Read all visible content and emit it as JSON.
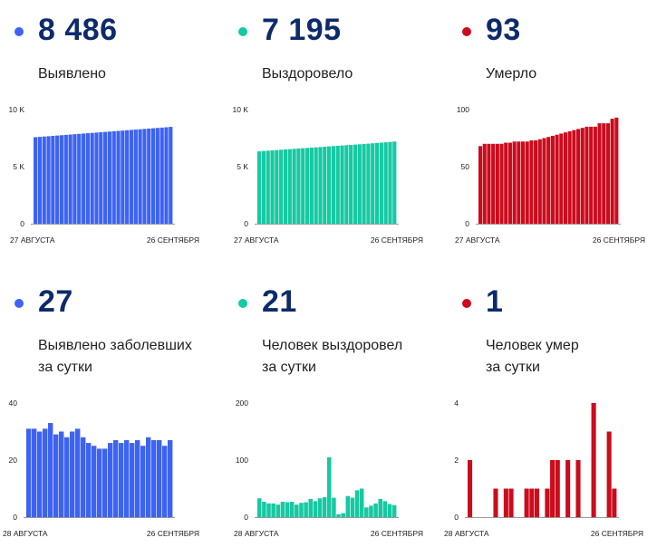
{
  "colors": {
    "blue": "#3d63f2",
    "teal": "#16c9a2",
    "red": "#cc0b1c",
    "navy": "#0d2b6b"
  },
  "panels": [
    {
      "value": "8 486",
      "label": [
        "Выявлено"
      ],
      "color": "#3d63f2"
    },
    {
      "value": "7 195",
      "label": [
        "Выздоровело"
      ],
      "color": "#16c9a2"
    },
    {
      "value": "93",
      "label": [
        "Умерло"
      ],
      "color": "#cc0b1c"
    },
    {
      "value": "27",
      "label": [
        "Выявлено заболевших",
        "за сутки"
      ],
      "color": "#3d63f2"
    },
    {
      "value": "21",
      "label": [
        "Человек выздоровел",
        "за сутки"
      ],
      "color": "#16c9a2"
    },
    {
      "value": "1",
      "label": [
        "Человек умер",
        "за сутки"
      ],
      "color": "#cc0b1c"
    }
  ],
  "chart_data": [
    {
      "type": "bar",
      "color": "#3d63f2",
      "ylim": [
        0,
        10000
      ],
      "yticks": [
        {
          "v": 0,
          "t": "0"
        },
        {
          "v": 5000,
          "t": "5 K"
        },
        {
          "v": 10000,
          "t": "10 K"
        }
      ],
      "xlabels": [
        "27 АВГУСТА",
        "26 СЕНТЯБРЯ"
      ],
      "values": [
        7582,
        7610,
        7639,
        7668,
        7697,
        7726,
        7755,
        7784,
        7813,
        7842,
        7871,
        7900,
        7929,
        7958,
        7987,
        8016,
        8045,
        8074,
        8103,
        8132,
        8161,
        8190,
        8219,
        8248,
        8277,
        8306,
        8335,
        8364,
        8393,
        8422,
        8451,
        8486
      ]
    },
    {
      "type": "bar",
      "color": "#16c9a2",
      "ylim": [
        0,
        10000
      ],
      "yticks": [
        {
          "v": 0,
          "t": "0"
        },
        {
          "v": 5000,
          "t": "5 K"
        },
        {
          "v": 10000,
          "t": "10 K"
        }
      ],
      "xlabels": [
        "27 АВГУСТА",
        "26 СЕНТЯБРЯ"
      ],
      "values": [
        6340,
        6375,
        6400,
        6425,
        6450,
        6480,
        6510,
        6535,
        6560,
        6590,
        6615,
        6640,
        6665,
        6690,
        6720,
        6745,
        6775,
        6800,
        6830,
        6855,
        6880,
        6905,
        6935,
        6960,
        6990,
        7015,
        7045,
        7075,
        7105,
        7135,
        7165,
        7195
      ]
    },
    {
      "type": "bar",
      "color": "#cc0b1c",
      "ylim": [
        0,
        100
      ],
      "yticks": [
        {
          "v": 0,
          "t": "0"
        },
        {
          "v": 50,
          "t": "50"
        },
        {
          "v": 100,
          "t": "100"
        }
      ],
      "xlabels": [
        "27 АВГУСТА",
        "26 СЕНТЯБРЯ"
      ],
      "values": [
        68,
        70,
        70,
        70,
        70,
        70,
        71,
        71,
        72,
        72,
        72,
        72,
        73,
        73,
        74,
        75,
        76,
        77,
        78,
        79,
        80,
        81,
        82,
        83,
        84,
        85,
        85,
        85,
        88,
        88,
        88,
        92,
        93
      ]
    },
    {
      "type": "bar",
      "color": "#3d63f2",
      "ylim": [
        0,
        40
      ],
      "yticks": [
        {
          "v": 0,
          "t": "0"
        },
        {
          "v": 20,
          "t": "20"
        },
        {
          "v": 40,
          "t": "40"
        }
      ],
      "xlabels": [
        "28 АВГУСТА",
        "26 СЕНТЯБРЯ"
      ],
      "values": [
        31,
        31,
        30,
        31,
        33,
        29,
        30,
        28,
        30,
        31,
        28,
        26,
        25,
        24,
        24,
        26,
        27,
        26,
        27,
        26,
        27,
        25,
        28,
        27,
        27,
        25,
        27
      ]
    },
    {
      "type": "bar",
      "color": "#16c9a2",
      "ylim": [
        0,
        200
      ],
      "yticks": [
        {
          "v": 0,
          "t": "0"
        },
        {
          "v": 100,
          "t": "100"
        },
        {
          "v": 200,
          "t": "200"
        }
      ],
      "xlabels": [
        "28 АВГУСТА",
        "26 СЕНТЯБРЯ"
      ],
      "values": [
        33,
        27,
        24,
        24,
        22,
        27,
        26,
        27,
        22,
        25,
        26,
        32,
        28,
        33,
        35,
        105,
        34,
        5,
        7,
        37,
        34,
        47,
        50,
        17,
        20,
        24,
        32,
        28,
        23,
        21
      ]
    },
    {
      "type": "bar",
      "color": "#cc0b1c",
      "ylim": [
        0,
        4
      ],
      "yticks": [
        {
          "v": 0,
          "t": "0"
        },
        {
          "v": 2,
          "t": "2"
        },
        {
          "v": 4,
          "t": "4"
        }
      ],
      "xlabels": [
        "28 АВГУСТА",
        "26 СЕНТЯБРЯ"
      ],
      "values": [
        2,
        0,
        0,
        0,
        0,
        1,
        0,
        1,
        1,
        0,
        0,
        1,
        1,
        1,
        0,
        1,
        2,
        2,
        0,
        2,
        0,
        2,
        0,
        0,
        4,
        0,
        0,
        3,
        1
      ]
    }
  ]
}
